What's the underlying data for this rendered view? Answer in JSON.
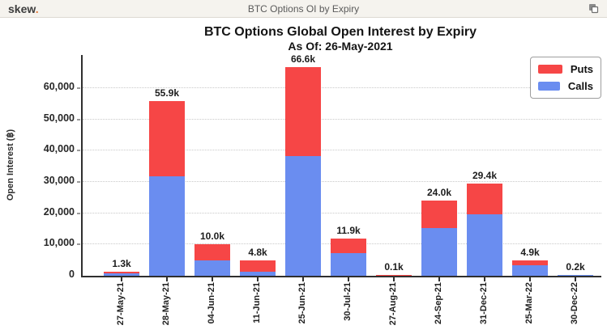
{
  "header": {
    "logo_text": "skew",
    "logo_dot": ".",
    "title": "BTC Options OI by Expiry",
    "accent_color": "#e87e3c"
  },
  "chart_data": {
    "type": "bar",
    "stacked": true,
    "title": "BTC Options Global Open Interest by Expiry",
    "subtitle": "As Of: 26-May-2021",
    "xlabel": "",
    "ylabel": "Open Interest (฿)",
    "ylim": [
      0,
      70000
    ],
    "ytick_interval": 10000,
    "ytick_labels": [
      "0",
      "10,000",
      "20,000",
      "30,000",
      "40,000",
      "50,000",
      "60,000"
    ],
    "grid": "horizontal-dotted",
    "legend_position": "top-right",
    "legend_order": [
      "Puts",
      "Calls"
    ],
    "categories": [
      "27-May-21",
      "28-May-21",
      "04-Jun-21",
      "11-Jun-21",
      "25-Jun-21",
      "30-Jul-21",
      "27-Aug-21",
      "24-Sep-21",
      "31-Dec-21",
      "25-Mar-22",
      "30-Dec-22"
    ],
    "series": [
      {
        "name": "Calls",
        "color": "#6a8df0",
        "values": [
          700,
          31800,
          4800,
          1300,
          38200,
          7200,
          0,
          15300,
          19600,
          3400,
          200
        ]
      },
      {
        "name": "Puts",
        "color": "#f64646",
        "values": [
          600,
          24100,
          5200,
          3500,
          28400,
          4700,
          100,
          8700,
          9800,
          1500,
          0
        ]
      }
    ],
    "total_labels": [
      "1.3k",
      "55.9k",
      "10.0k",
      "4.8k",
      "66.6k",
      "11.9k",
      "0.1k",
      "24.0k",
      "29.4k",
      "4.9k",
      "0.2k"
    ]
  }
}
